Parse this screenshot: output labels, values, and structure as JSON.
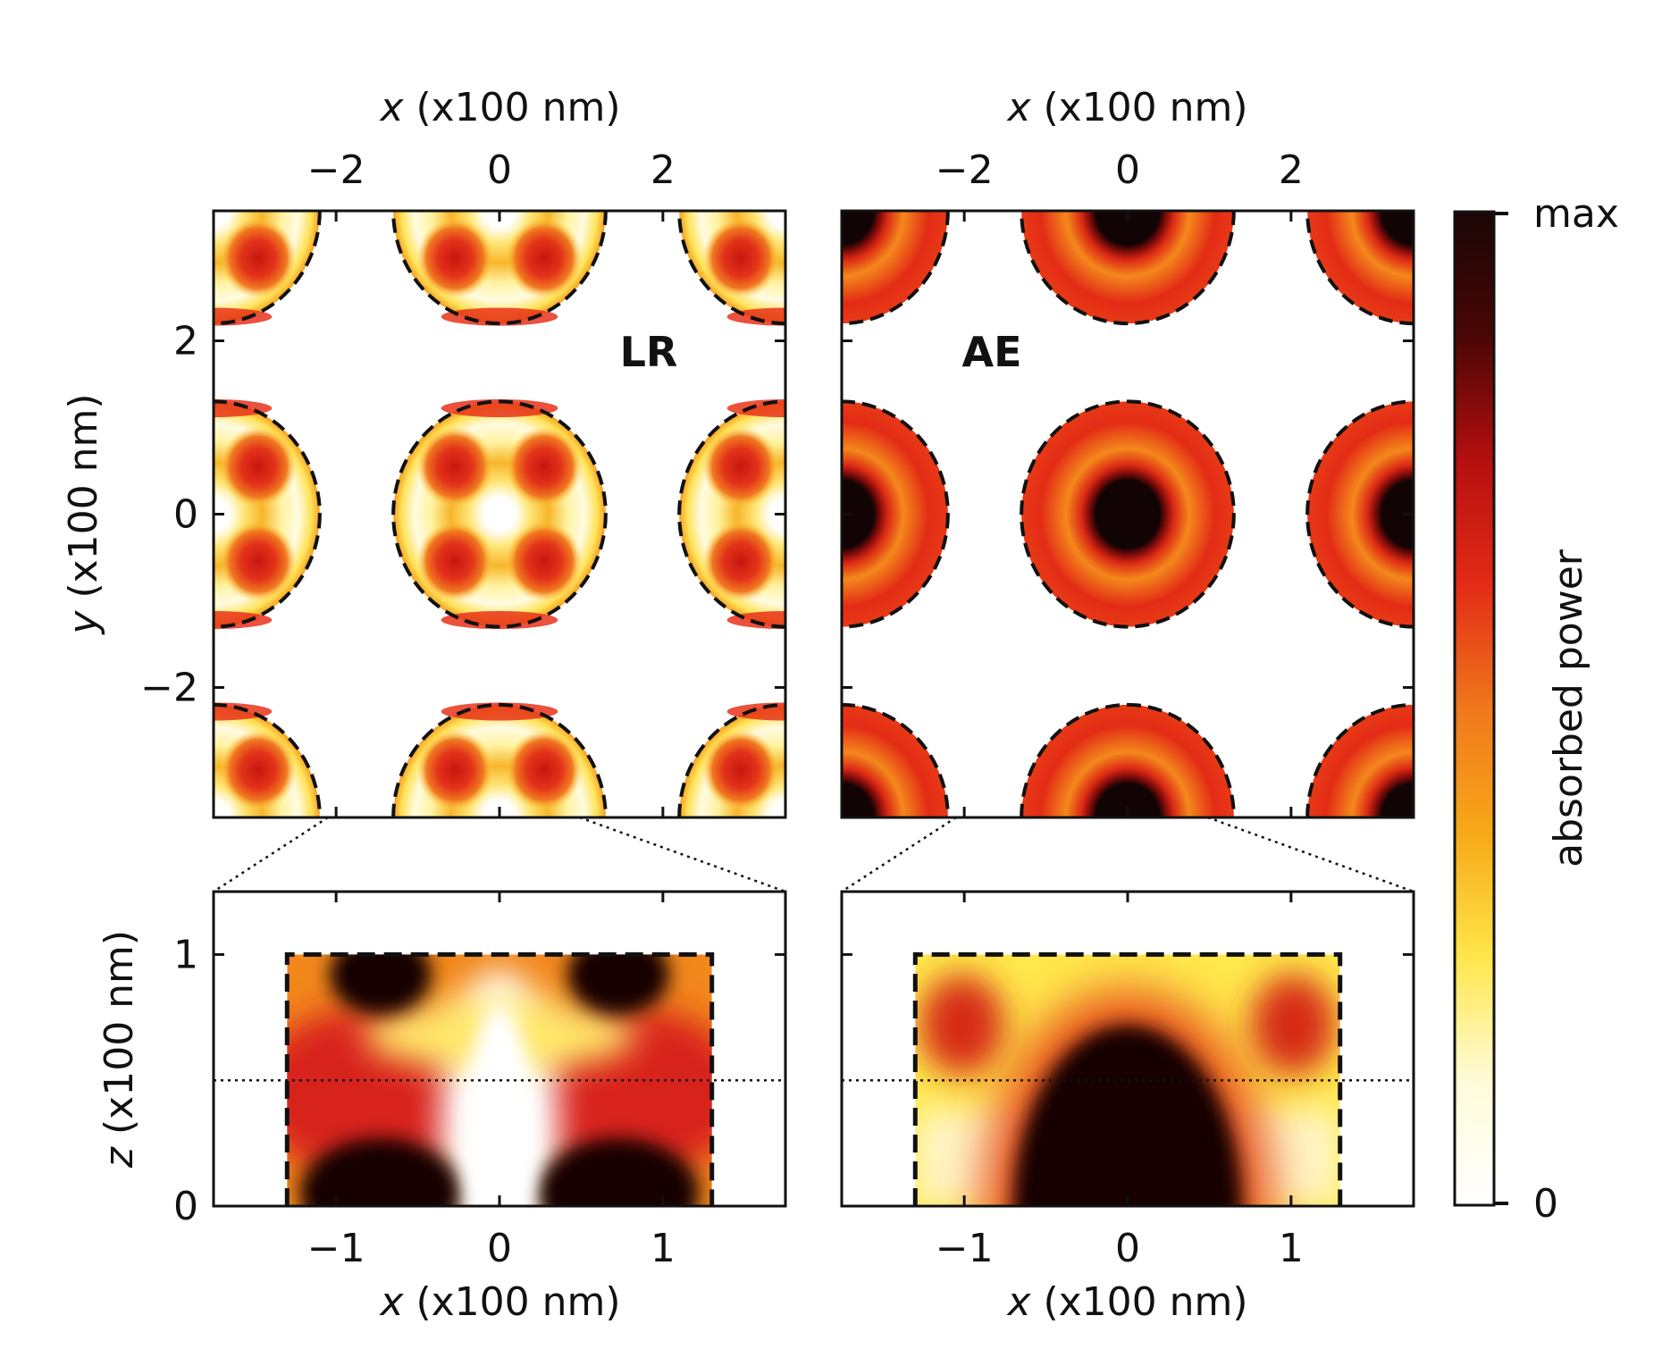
{
  "colors": {
    "colormap": [
      "#ffffff",
      "#fffbd9",
      "#ffe64a",
      "#f7a818",
      "#f0781c",
      "#e32b16",
      "#b50f0f",
      "#4a0606",
      "#1a0605"
    ],
    "frame": "#111111"
  },
  "chart_data": [
    {
      "type": "heatmap",
      "label": "LR",
      "xlabel_var": "x",
      "xlabel_unit": " (x100 nm)",
      "ylabel_var": "y",
      "ylabel_unit": " (x100 nm)",
      "xlim": [
        -3.5,
        3.5
      ],
      "ylim": [
        -3.5,
        3.5
      ],
      "xticks": [
        "−2",
        "0",
        "2"
      ],
      "yticks": [
        "2",
        "0",
        "−2"
      ],
      "lattice_period": 3.5,
      "disk_radius": 1.3,
      "pattern": "four-lobed ring around a low-absorption center"
    },
    {
      "type": "heatmap",
      "label": "AE",
      "xlabel_var": "x",
      "xlabel_unit": " (x100 nm)",
      "xlim": [
        -3.5,
        3.5
      ],
      "ylim": [
        -3.5,
        3.5
      ],
      "xticks": [
        "−2",
        "0",
        "2"
      ],
      "lattice_period": 3.5,
      "disk_radius": 1.3,
      "pattern": "concentric rings with absorption maximum at the center"
    },
    {
      "type": "heatmap",
      "xlabel_var": "x",
      "xlabel_unit": " (x100 nm)",
      "ylabel_var": "z",
      "ylabel_unit": " (x100 nm)",
      "xlim": [
        -1.75,
        1.75
      ],
      "ylim": [
        0,
        1.25
      ],
      "xticks": [
        "−1",
        "0",
        "1"
      ],
      "yticks": [
        "1",
        "0"
      ],
      "disk_half_width": 1.3,
      "disk_height": 1.0,
      "cut_z": 0.5
    },
    {
      "type": "heatmap",
      "xlabel_var": "x",
      "xlabel_unit": " (x100 nm)",
      "xlim": [
        -1.75,
        1.75
      ],
      "ylim": [
        0,
        1.25
      ],
      "xticks": [
        "−1",
        "0",
        "1"
      ],
      "disk_half_width": 1.3,
      "disk_height": 1.0,
      "cut_z": 0.5
    }
  ],
  "colorbar": {
    "label": "absorbed power",
    "max_label": "max",
    "min_label": "0"
  }
}
